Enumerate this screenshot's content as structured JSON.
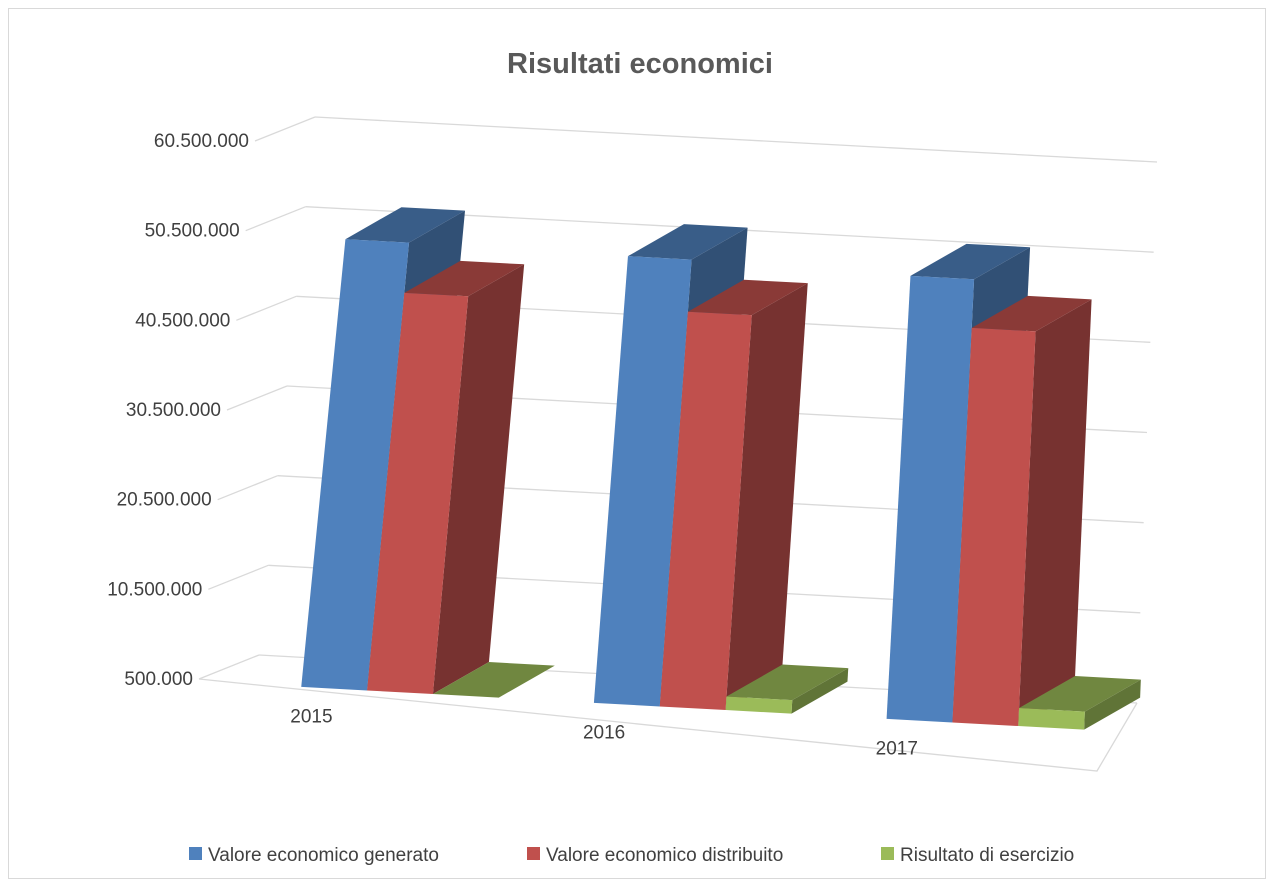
{
  "chart_data": {
    "type": "bar",
    "title": "Risultati economici",
    "xlabel": "",
    "ylabel": "",
    "categories": [
      "2015",
      "2016",
      "2017"
    ],
    "y_ticks": [
      "500.000",
      "10.500.000",
      "20.500.000",
      "30.500.000",
      "40.500.000",
      "50.500.000",
      "60.500.000"
    ],
    "ylim": [
      500000,
      60500000
    ],
    "grid": true,
    "legend_position": "bottom",
    "series": [
      {
        "name": "Valore economico generato",
        "color": "#4f81bd",
        "values": [
          50400000,
          50200000,
          49700000
        ]
      },
      {
        "name": "Valore economico distribuito",
        "color": "#c0504d",
        "values": [
          44800000,
          44400000,
          44300000
        ]
      },
      {
        "name": "Risultato di esercizio",
        "color": "#9bbb59",
        "values": [
          500000,
          2000000,
          2500000
        ]
      }
    ]
  }
}
